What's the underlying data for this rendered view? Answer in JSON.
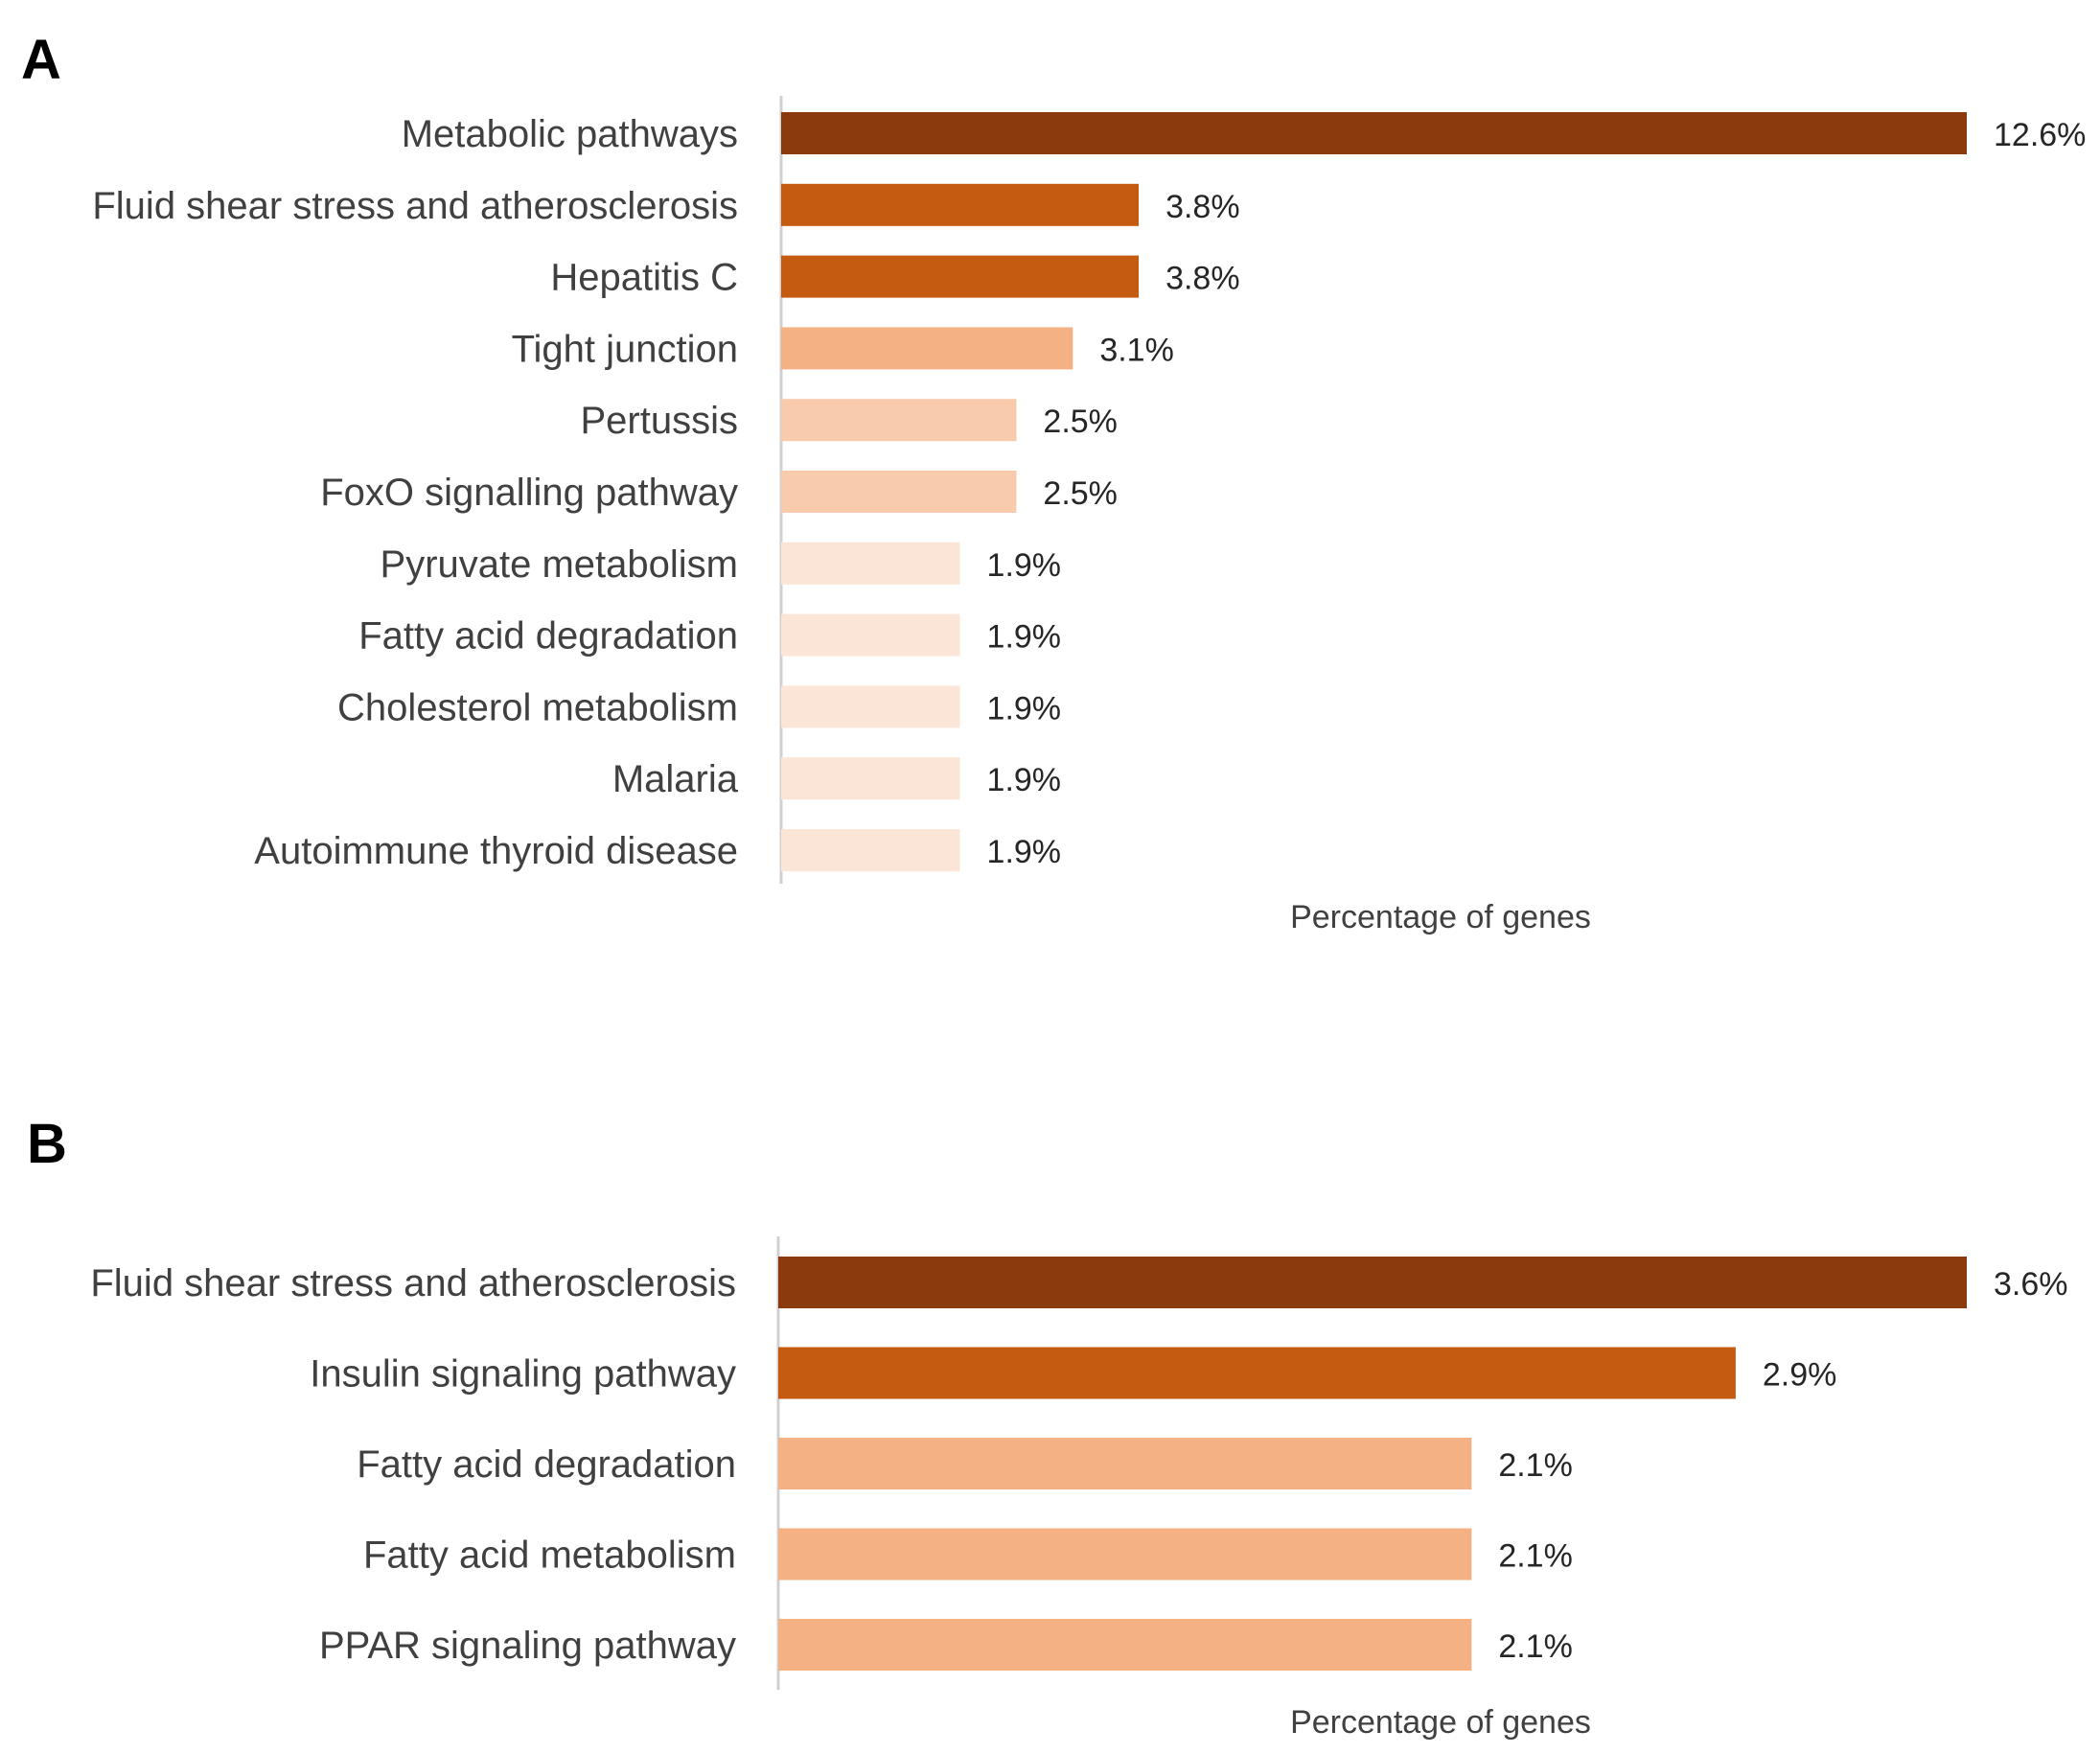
{
  "chart_data": [
    {
      "panel": "A",
      "type": "bar",
      "orientation": "horizontal",
      "categories": [
        "Metabolic pathways",
        "Fluid shear stress and atherosclerosis",
        "Hepatitis C",
        "Tight junction",
        "Pertussis",
        "FoxO signalling pathway",
        "Pyruvate metabolism",
        "Fatty acid degradation",
        "Cholesterol metabolism",
        "Malaria",
        "Autoimmune thyroid disease"
      ],
      "values": [
        12.6,
        3.8,
        3.8,
        3.1,
        2.5,
        2.5,
        1.9,
        1.9,
        1.9,
        1.9,
        1.9
      ],
      "value_labels": [
        "12.6%",
        "3.8%",
        "3.8%",
        "3.1%",
        "2.5%",
        "2.5%",
        "1.9%",
        "1.9%",
        "1.9%",
        "1.9%",
        "1.9%"
      ],
      "colors": [
        "#8b3a0e",
        "#c55a11",
        "#c55a11",
        "#f4b183",
        "#f8cbad",
        "#f8cbad",
        "#fbe5d6",
        "#fbe5d6",
        "#fbe5d6",
        "#fbe5d6",
        "#fbe5d6"
      ],
      "xlabel": "Percentage of genes",
      "ylabel": "",
      "xlim": [
        0,
        12.6
      ]
    },
    {
      "panel": "B",
      "type": "bar",
      "orientation": "horizontal",
      "categories": [
        "Fluid shear stress and atherosclerosis",
        "Insulin signaling pathway",
        "Fatty acid degradation",
        "Fatty acid metabolism",
        "PPAR signaling pathway"
      ],
      "values": [
        3.6,
        2.9,
        2.1,
        2.1,
        2.1
      ],
      "value_labels": [
        "3.6%",
        "2.9%",
        "2.1%",
        "2.1%",
        "2.1%"
      ],
      "colors": [
        "#8b3a0e",
        "#c55a11",
        "#f4b183",
        "#f4b183",
        "#f4b183"
      ],
      "xlabel": "Percentage of genes",
      "ylabel": "",
      "xlim": [
        0,
        3.6
      ]
    }
  ]
}
